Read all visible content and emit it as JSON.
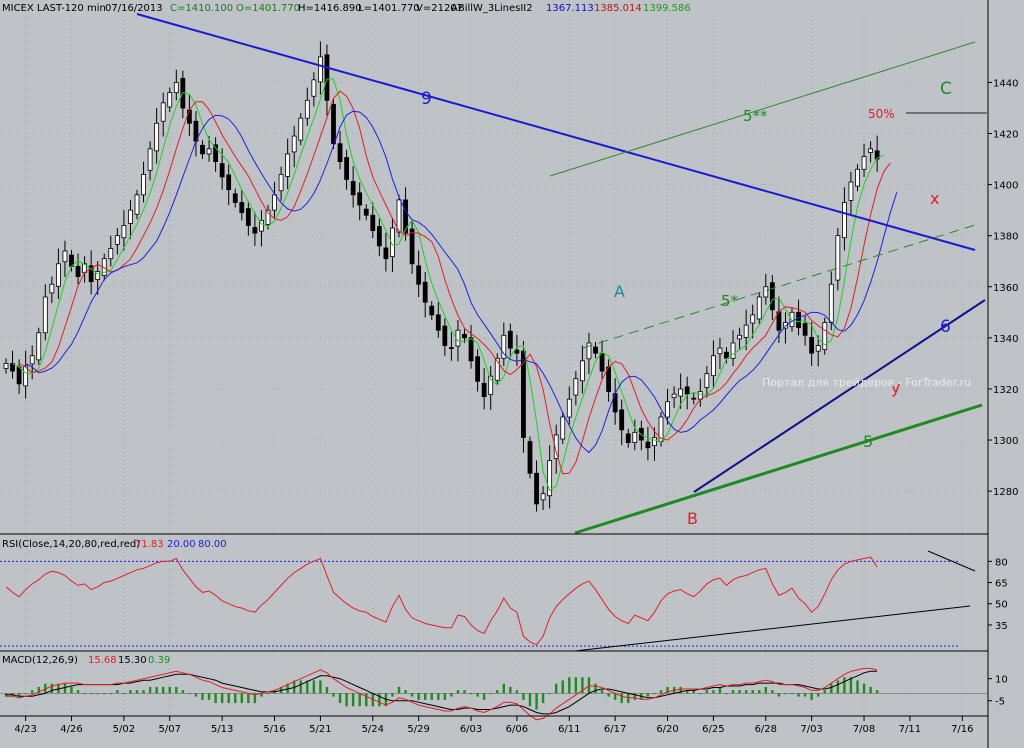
{
  "chart_data": {
    "type": "candlestick",
    "header": {
      "symbol": "MICEX LAST-120 min",
      "date": "07/16/2013",
      "close": "C=1410.100",
      "open": "O=1401.770",
      "high": "H=1416.890",
      "low": "L=1401.770",
      "volume": "V=21207",
      "indicator": "ABillW_3LinesII2",
      "line_values": [
        "1367.113",
        "1385.014",
        "1399.586"
      ],
      "colors": {
        "close": "#1a7a1a",
        "open": "#1a7a1a",
        "line1": "#1010c0",
        "line2": "#c01010",
        "line3": "#1a9a1a"
      }
    },
    "price_panel": {
      "y_ticks": [
        1280,
        1300,
        1320,
        1340,
        1360,
        1380,
        1400,
        1420,
        1440
      ],
      "ylim": [
        1264,
        1466
      ],
      "annotations": [
        {
          "text": "9",
          "color": "#1a1ad0"
        },
        {
          "text": "5**",
          "color": "#1f8a1f"
        },
        {
          "text": "C",
          "color": "#1f8a1f"
        },
        {
          "text": "50%",
          "color": "#e02020"
        },
        {
          "text": "x",
          "color": "#e02020"
        },
        {
          "text": "A",
          "color": "#1a8a9a"
        },
        {
          "text": "5*",
          "color": "#1f8a1f"
        },
        {
          "text": "6",
          "color": "#1a1ad0"
        },
        {
          "text": "y",
          "color": "#e02020"
        },
        {
          "text": "5",
          "color": "#1f8a1f"
        },
        {
          "text": "B",
          "color": "#e02020"
        }
      ],
      "watermark": "Портал для трейдеров - ForTrader.ru",
      "closes": [
        1330,
        1327,
        1322,
        1329,
        1333,
        1342,
        1356,
        1361,
        1369,
        1374,
        1368,
        1364,
        1369,
        1362,
        1366,
        1371,
        1375,
        1380,
        1384,
        1390,
        1396,
        1404,
        1414,
        1424,
        1432,
        1436,
        1440,
        1430,
        1424,
        1417,
        1412,
        1414,
        1409,
        1403,
        1398,
        1393,
        1389,
        1384,
        1381,
        1386,
        1390,
        1396,
        1404,
        1412,
        1419,
        1426,
        1433,
        1441,
        1450,
        1433,
        1416,
        1409,
        1402,
        1396,
        1392,
        1388,
        1382,
        1376,
        1371,
        1383,
        1394,
        1381,
        1369,
        1361,
        1354,
        1349,
        1343,
        1337,
        1336,
        1343,
        1340,
        1331,
        1323,
        1317,
        1325,
        1332,
        1341,
        1336,
        1334,
        1301,
        1287,
        1275,
        1279,
        1292,
        1302,
        1309,
        1316,
        1324,
        1331,
        1338,
        1334,
        1327,
        1319,
        1311,
        1304,
        1299,
        1303,
        1300,
        1297,
        1301,
        1309,
        1315,
        1318,
        1320,
        1318,
        1316,
        1319,
        1326,
        1333,
        1336,
        1332,
        1338,
        1341,
        1345,
        1349,
        1356,
        1360,
        1351,
        1343,
        1346,
        1350,
        1344,
        1341,
        1334,
        1337,
        1346,
        1361,
        1380,
        1393,
        1401,
        1406,
        1411,
        1414,
        1410
      ],
      "series_colors": [
        "#20d020",
        "#e02020",
        "#2020e0"
      ]
    },
    "rsi_panel": {
      "label": "RSI(Close,14,20,80,red,red)",
      "values_text": [
        "71.83",
        "20.00",
        "80.00"
      ],
      "values_colors": [
        "#e02020",
        "#2020e0",
        "#2020e0"
      ],
      "y_ticks": [
        35,
        50,
        65,
        80
      ],
      "ylim": [
        18,
        88
      ],
      "levels": [
        20,
        80
      ],
      "rsi": [
        62,
        58,
        55,
        60,
        64,
        67,
        71,
        73,
        72,
        70,
        66,
        63,
        64,
        60,
        62,
        65,
        66,
        68,
        70,
        72,
        74,
        75,
        77,
        79,
        80,
        80,
        82,
        74,
        68,
        62,
        58,
        59,
        56,
        52,
        50,
        48,
        47,
        45,
        44,
        49,
        53,
        58,
        63,
        68,
        72,
        75,
        78,
        80,
        82,
        70,
        58,
        54,
        50,
        47,
        45,
        44,
        41,
        39,
        37,
        48,
        56,
        46,
        40,
        38,
        36,
        35,
        34,
        33,
        33,
        42,
        41,
        35,
        31,
        29,
        38,
        45,
        54,
        47,
        44,
        27,
        23,
        21,
        27,
        40,
        48,
        53,
        57,
        61,
        64,
        66,
        60,
        53,
        46,
        41,
        38,
        36,
        42,
        40,
        38,
        44,
        52,
        57,
        59,
        60,
        57,
        55,
        59,
        64,
        67,
        68,
        63,
        67,
        69,
        70,
        72,
        74,
        75,
        64,
        56,
        58,
        61,
        54,
        50,
        44,
        48,
        57,
        67,
        74,
        78,
        80,
        81,
        82,
        83,
        76
      ]
    },
    "macd_panel": {
      "label": "MACD(12,26,9)",
      "values_text": [
        "15.68",
        "15.30",
        "0.39"
      ],
      "values_colors": [
        "#e02020",
        "#000000",
        "#1f8a1f"
      ],
      "y_ticks": [
        10,
        -5
      ],
      "ylim": [
        -12,
        20
      ],
      "macd": [
        -2,
        -2,
        -3,
        -2,
        -1,
        1,
        3,
        5,
        6,
        7,
        7,
        7,
        6,
        6,
        6,
        6,
        6,
        7,
        7,
        8,
        9,
        10,
        11,
        12,
        13,
        14,
        15,
        14,
        13,
        11,
        9,
        8,
        6,
        4,
        3,
        2,
        1,
        0,
        -1,
        0,
        1,
        2,
        4,
        6,
        8,
        10,
        12,
        14,
        16,
        14,
        10,
        7,
        4,
        2,
        0,
        -2,
        -4,
        -6,
        -8,
        -6,
        -3,
        -4,
        -6,
        -8,
        -9,
        -10,
        -11,
        -12,
        -12,
        -10,
        -9,
        -10,
        -12,
        -13,
        -11,
        -9,
        -6,
        -6,
        -7,
        -11,
        -15,
        -18,
        -17,
        -14,
        -10,
        -7,
        -4,
        -1,
        2,
        5,
        5,
        4,
        2,
        0,
        -2,
        -3,
        -3,
        -4,
        -4,
        -3,
        -1,
        1,
        2,
        3,
        3,
        3,
        3,
        4,
        5,
        6,
        5,
        6,
        6,
        7,
        7,
        8,
        9,
        8,
        6,
        6,
        6,
        5,
        4,
        2,
        2,
        4,
        7,
        10,
        13,
        15,
        16,
        17,
        17,
        16
      ],
      "signal": [
        -1,
        -1,
        -2,
        -2,
        -2,
        -1,
        0,
        2,
        3,
        4,
        5,
        6,
        6,
        6,
        6,
        6,
        6,
        6,
        7,
        7,
        8,
        9,
        9,
        10,
        11,
        12,
        13,
        13,
        13,
        12,
        11,
        10,
        9,
        7,
        6,
        5,
        4,
        3,
        2,
        1,
        1,
        1,
        2,
        3,
        4,
        6,
        8,
        10,
        12,
        12,
        11,
        10,
        8,
        6,
        4,
        2,
        0,
        -2,
        -4,
        -5,
        -5,
        -5,
        -5,
        -6,
        -7,
        -8,
        -9,
        -10,
        -11,
        -11,
        -10,
        -10,
        -11,
        -11,
        -11,
        -10,
        -9,
        -8,
        -8,
        -9,
        -11,
        -13,
        -14,
        -14,
        -13,
        -11,
        -9,
        -6,
        -3,
        0,
        2,
        3,
        3,
        2,
        1,
        0,
        -1,
        -2,
        -3,
        -3,
        -2,
        -1,
        0,
        1,
        2,
        2,
        3,
        3,
        4,
        4,
        5,
        5,
        5,
        6,
        6,
        7,
        7,
        7,
        7,
        6,
        6,
        6,
        5,
        4,
        3,
        3,
        4,
        6,
        8,
        10,
        12,
        14,
        15,
        15
      ]
    },
    "x_ticks": [
      {
        "label": "4/23",
        "i": 3
      },
      {
        "label": "4/26",
        "i": 10
      },
      {
        "label": "5/02",
        "i": 18
      },
      {
        "label": "5/07",
        "i": 25
      },
      {
        "label": "5/13",
        "i": 33
      },
      {
        "label": "5/16",
        "i": 41
      },
      {
        "label": "5/21",
        "i": 48
      },
      {
        "label": "5/24",
        "i": 56
      },
      {
        "label": "5/29",
        "i": 63
      },
      {
        "label": "6/03",
        "i": 71
      },
      {
        "label": "6/06",
        "i": 78
      },
      {
        "label": "6/11",
        "i": 86
      },
      {
        "label": "6/17",
        "i": 93
      },
      {
        "label": "6/20",
        "i": 101
      },
      {
        "label": "6/25",
        "i": 108
      },
      {
        "label": "6/28",
        "i": 116
      },
      {
        "label": "7/03",
        "i": 123
      },
      {
        "label": "7/08",
        "i": 131
      },
      {
        "label": "7/11",
        "i": 138
      },
      {
        "label": "7/16",
        "i": 146
      }
    ]
  }
}
